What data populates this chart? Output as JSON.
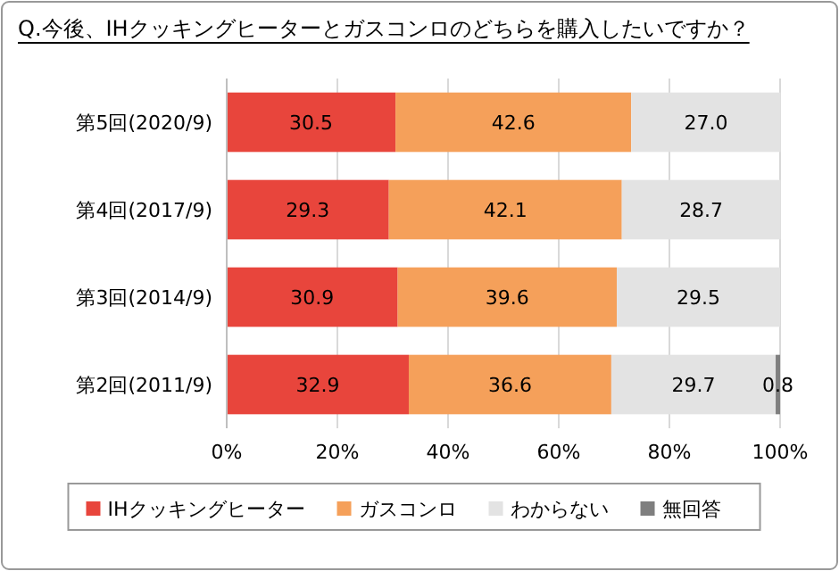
{
  "chart_data": {
    "type": "bar",
    "orientation": "horizontal",
    "stacked": true,
    "title": "Q.今後、IHクッキングヒーターとガスコンロのどちらを購入したいですか？",
    "categories": [
      "第5回(2020/9)",
      "第4回(2017/9)",
      "第3回(2014/9)",
      "第2回(2011/9)"
    ],
    "series": [
      {
        "name": "IHクッキングヒーター",
        "color": "#e8453c",
        "values": [
          30.5,
          29.3,
          30.9,
          32.9
        ],
        "value_labels": [
          "30.5",
          "29.3",
          "30.9",
          "32.9"
        ]
      },
      {
        "name": "ガスコンロ",
        "color": "#f5a05a",
        "values": [
          42.6,
          42.1,
          39.6,
          36.6
        ],
        "value_labels": [
          "42.6",
          "42.1",
          "39.6",
          "36.6"
        ]
      },
      {
        "name": "わからない",
        "color": "#e3e3e3",
        "values": [
          27.0,
          28.7,
          29.5,
          29.7
        ],
        "value_labels": [
          "27.0",
          "28.7",
          "29.5",
          "29.7"
        ]
      },
      {
        "name": "無回答",
        "color": "#7f7f7f",
        "values": [
          null,
          null,
          null,
          0.8
        ],
        "value_labels": [
          null,
          null,
          null,
          "0.8"
        ]
      }
    ],
    "xlim": [
      0,
      100
    ],
    "xticks": [
      {
        "value": 0,
        "label": "0%"
      },
      {
        "value": 20,
        "label": "20%"
      },
      {
        "value": 40,
        "label": "40%"
      },
      {
        "value": 60,
        "label": "60%"
      },
      {
        "value": 80,
        "label": "80%"
      },
      {
        "value": 100,
        "label": "100%"
      }
    ],
    "grid": "x",
    "legend": "bottom"
  }
}
